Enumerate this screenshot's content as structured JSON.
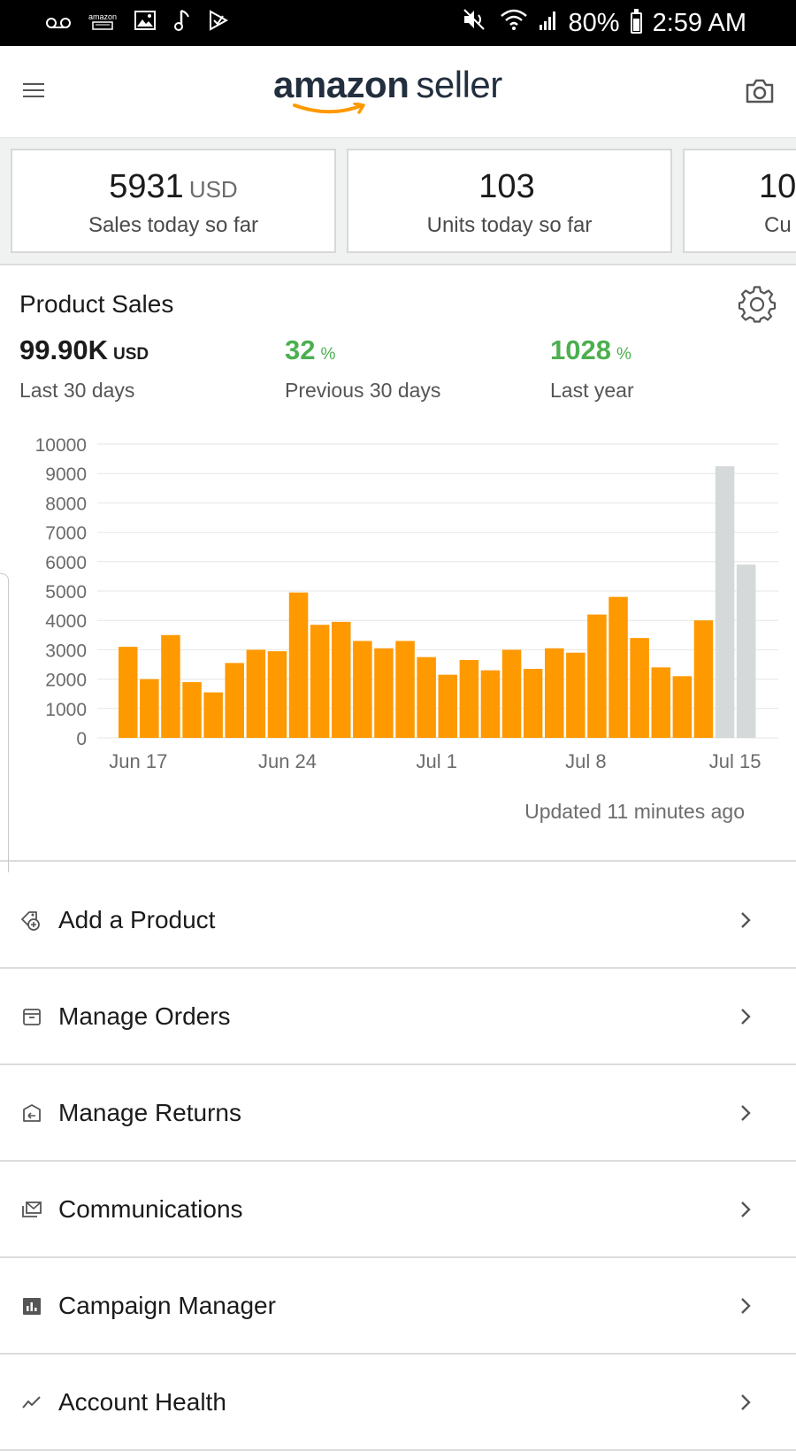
{
  "status_bar": {
    "left_mini_text": "amazon",
    "battery": "80%",
    "time": "2:59 AM"
  },
  "header": {
    "logo_brand": "amazon",
    "logo_suffix": "seller"
  },
  "metrics": [
    {
      "value": "5931",
      "unit": "USD",
      "label": "Sales today so far"
    },
    {
      "value": "103",
      "unit": "",
      "label": "Units today so far"
    },
    {
      "value": "10",
      "unit": "",
      "label": "Cu"
    }
  ],
  "product_sales": {
    "title": "Product Sales",
    "stats": [
      {
        "value": "99.90K",
        "unit": "USD",
        "label": "Last 30 days"
      },
      {
        "value": "32",
        "unit": "%",
        "label": "Previous 30 days"
      },
      {
        "value": "1028",
        "unit": "%",
        "label": "Last year"
      }
    ],
    "updated": "Updated 11 minutes ago"
  },
  "chart_data": {
    "type": "bar",
    "y_ticks": [
      "10000",
      "9000",
      "8000",
      "7000",
      "6000",
      "5000",
      "4000",
      "3000",
      "2000",
      "1000",
      "0"
    ],
    "ylim": [
      0,
      10000
    ],
    "x_tick_labels": [
      "Jun 17",
      "Jun 24",
      "Jul 1",
      "Jul 8",
      "Jul 15"
    ],
    "x_tick_index": [
      1,
      8,
      15,
      22,
      29
    ],
    "grid": true,
    "series": [
      {
        "color": "#ff9900",
        "values": [
          3100,
          2000,
          3500,
          1900,
          1550,
          2550,
          3000,
          2950,
          4950,
          3850,
          3950,
          3300,
          3050,
          3300,
          2750,
          2150,
          2650,
          2300,
          3000,
          2350,
          3050,
          2900,
          4200,
          4800,
          3400,
          2400,
          2100,
          4000
        ]
      },
      {
        "color": "#d5d9d9",
        "offset": 28,
        "values": [
          9250,
          5900
        ]
      }
    ]
  },
  "menu": [
    {
      "label": "Add a Product",
      "icon": "tag-plus-icon"
    },
    {
      "label": "Manage Orders",
      "icon": "box-icon"
    },
    {
      "label": "Manage Returns",
      "icon": "return-box-icon"
    },
    {
      "label": "Communications",
      "icon": "mail-icon"
    },
    {
      "label": "Campaign Manager",
      "icon": "bar-chart-icon"
    },
    {
      "label": "Account Health",
      "icon": "trend-icon"
    }
  ],
  "colors": {
    "accent": "#ff9900",
    "positive": "#4caf50",
    "projection": "#d5d9d9"
  }
}
